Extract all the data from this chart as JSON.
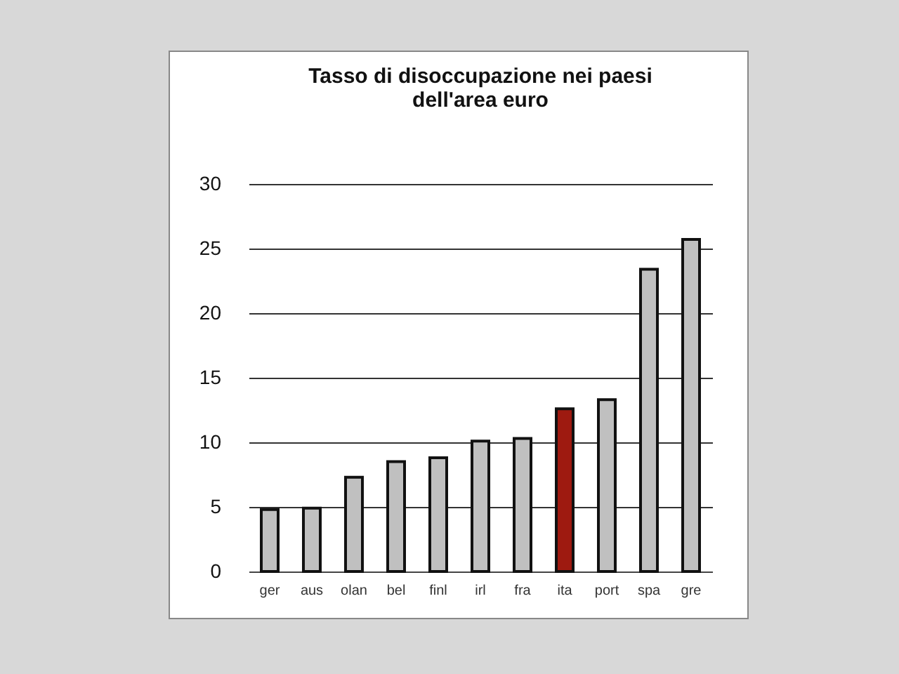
{
  "chart_data": {
    "type": "bar",
    "title": [
      "Tasso di disoccupazione nei paesi",
      "dell'area euro"
    ],
    "categories": [
      "ger",
      "aus",
      "olan",
      "bel",
      "finl",
      "irl",
      "fra",
      "ita",
      "port",
      "spa",
      "gre"
    ],
    "values": [
      4.8,
      4.9,
      7.3,
      8.5,
      8.8,
      10.1,
      10.3,
      12.6,
      13.3,
      23.4,
      25.7
    ],
    "colors": [
      "#c0c0c0",
      "#c0c0c0",
      "#c0c0c0",
      "#c0c0c0",
      "#c0c0c0",
      "#c0c0c0",
      "#c0c0c0",
      "#9e1a10",
      "#c0c0c0",
      "#c0c0c0",
      "#c0c0c0"
    ],
    "ylim": [
      0,
      30
    ],
    "yticks": [
      0,
      5,
      10,
      15,
      20,
      25,
      30
    ],
    "grid": "y"
  }
}
